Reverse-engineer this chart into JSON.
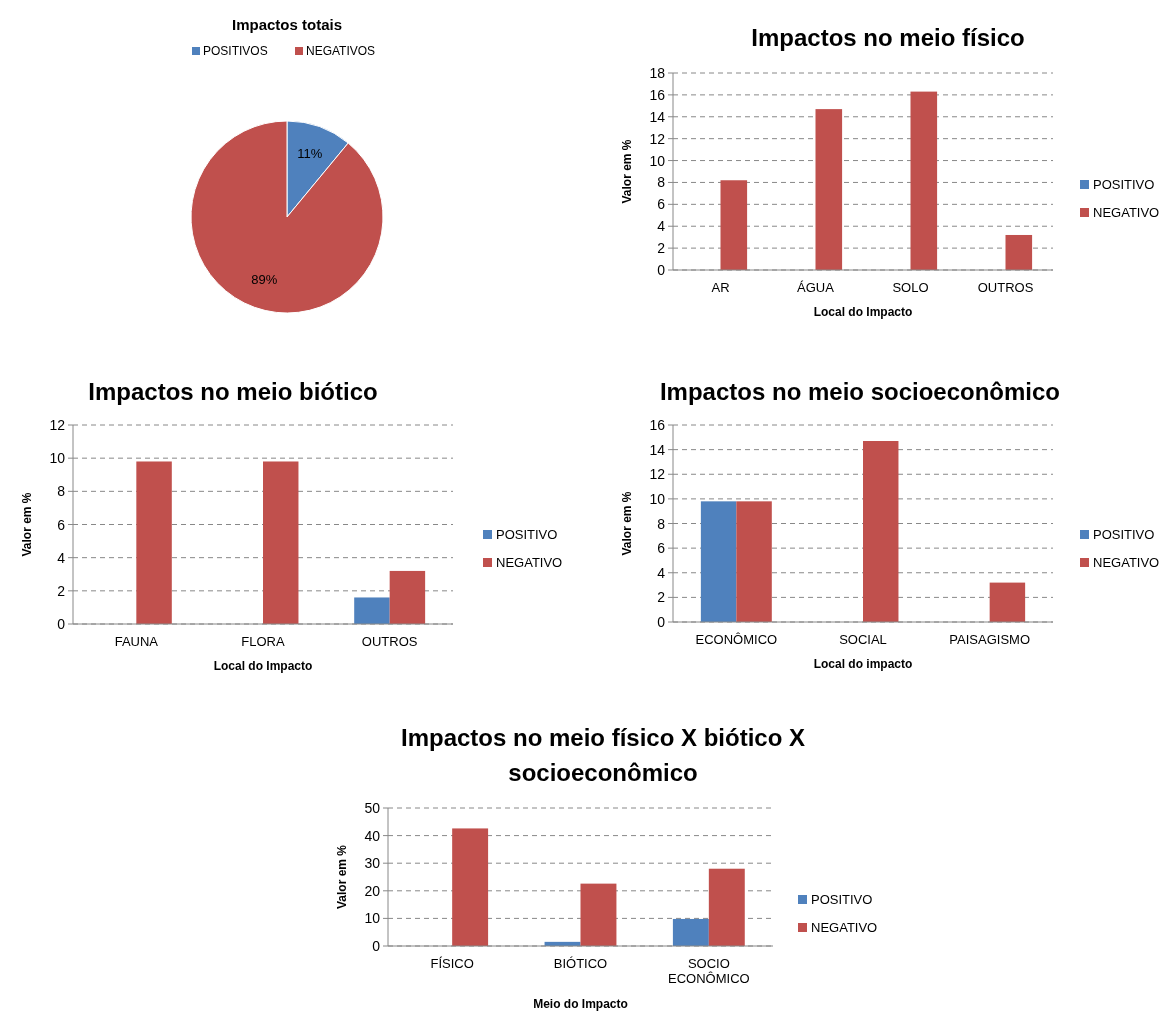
{
  "chart_data": [
    {
      "type": "pie",
      "title": "Impactos totais",
      "categories": [
        "POSITIVOS",
        "NEGATIVOS"
      ],
      "values": [
        11,
        89
      ],
      "colors": [
        "#4f81bd",
        "#c0504d"
      ],
      "value_labels": [
        "11%",
        "89%"
      ],
      "legend": "top"
    },
    {
      "type": "bar",
      "title": "Impactos no meio físico",
      "xlabel": "Local do Impacto",
      "ylabel": "Valor em %",
      "categories": [
        "AR",
        "ÁGUA",
        "SOLO",
        "OUTROS"
      ],
      "series": [
        {
          "name": "POSITIVO",
          "color": "#4f81bd",
          "values": [
            0,
            0,
            0,
            0
          ]
        },
        {
          "name": "NEGATIVO",
          "color": "#c0504d",
          "values": [
            8.2,
            14.7,
            16.3,
            3.2
          ]
        }
      ],
      "ylim": [
        0,
        18
      ],
      "yticks": [
        0,
        2,
        4,
        6,
        8,
        10,
        12,
        14,
        16,
        18
      ],
      "grid": "y",
      "legend": "right"
    },
    {
      "type": "bar",
      "title": "Impactos no meio biótico",
      "xlabel": "Local do Impacto",
      "ylabel": "Valor em %",
      "categories": [
        "FAUNA",
        "FLORA",
        "OUTROS"
      ],
      "series": [
        {
          "name": "POSITIVO",
          "color": "#4f81bd",
          "values": [
            0,
            0,
            1.6
          ]
        },
        {
          "name": "NEGATIVO",
          "color": "#c0504d",
          "values": [
            9.8,
            9.8,
            3.2
          ]
        }
      ],
      "ylim": [
        0,
        12
      ],
      "yticks": [
        0,
        2,
        4,
        6,
        8,
        10,
        12
      ],
      "grid": "y",
      "legend": "right"
    },
    {
      "type": "bar",
      "title": "Impactos no meio socioeconômico",
      "xlabel": "Local do impacto",
      "ylabel": "Valor em %",
      "categories": [
        "ECONÔMICO",
        "SOCIAL",
        "PAISAGISMO"
      ],
      "series": [
        {
          "name": "POSITIVO",
          "color": "#4f81bd",
          "values": [
            9.8,
            0,
            0
          ]
        },
        {
          "name": "NEGATIVO",
          "color": "#c0504d",
          "values": [
            9.8,
            14.7,
            3.2
          ]
        }
      ],
      "ylim": [
        0,
        16
      ],
      "yticks": [
        0,
        2,
        4,
        6,
        8,
        10,
        12,
        14,
        16
      ],
      "grid": "y",
      "legend": "right"
    },
    {
      "type": "bar",
      "title": "Impactos no meio físico X biótico X socioeconômico",
      "xlabel": "Meio do Impacto",
      "ylabel": "Valor em %",
      "categories": [
        "FÍSICO",
        "BIÓTICO",
        "SOCIO ECONÔMICO"
      ],
      "series": [
        {
          "name": "POSITIVO",
          "color": "#4f81bd",
          "values": [
            0,
            1.5,
            9.8
          ]
        },
        {
          "name": "NEGATIVO",
          "color": "#c0504d",
          "values": [
            42.6,
            22.6,
            28.0
          ]
        }
      ],
      "ylim": [
        0,
        50
      ],
      "yticks": [
        0,
        10,
        20,
        30,
        40,
        50
      ],
      "grid": "y",
      "legend": "right"
    }
  ]
}
